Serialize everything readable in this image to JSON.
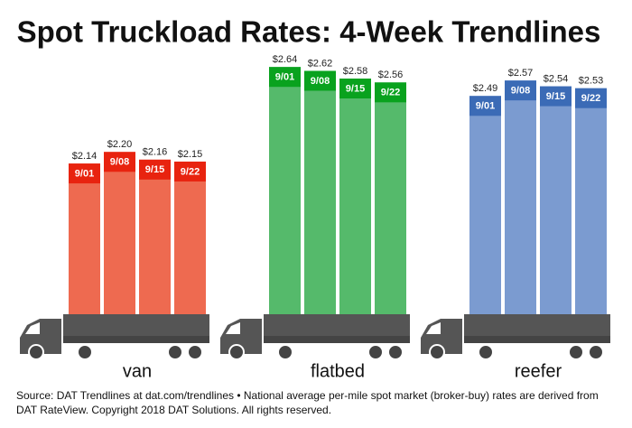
{
  "title": "Spot Truckload Rates: 4-Week Trendlines",
  "source": [
    "Source: DAT Trendlines at dat.com/trendlines • National average per-mile spot market (broker-buy) rates are derived from",
    "DAT RateView. Copyright 2018 DAT Solutions. All rights reserved."
  ],
  "chart_data": [
    {
      "type": "bar",
      "title": "van",
      "categories": [
        "9/01",
        "9/08",
        "9/15",
        "9/22"
      ],
      "values": [
        2.14,
        2.2,
        2.16,
        2.15
      ],
      "value_labels": [
        "$2.14",
        "$2.20",
        "$2.16",
        "$2.15"
      ],
      "color": "#ee6a50",
      "label_color": "#e8230f",
      "ylim": [
        1.35,
        2.8
      ]
    },
    {
      "type": "bar",
      "title": "flatbed",
      "categories": [
        "9/01",
        "9/08",
        "9/15",
        "9/22"
      ],
      "values": [
        2.64,
        2.62,
        2.58,
        2.56
      ],
      "value_labels": [
        "$2.64",
        "$2.62",
        "$2.58",
        "$2.56"
      ],
      "color": "#55ba6b",
      "label_color": "#09a21e",
      "ylim": [
        1.35,
        2.8
      ]
    },
    {
      "type": "bar",
      "title": "reefer",
      "categories": [
        "9/01",
        "9/08",
        "9/15",
        "9/22"
      ],
      "values": [
        2.49,
        2.57,
        2.54,
        2.53
      ],
      "value_labels": [
        "$2.49",
        "$2.57",
        "$2.54",
        "$2.53"
      ],
      "color": "#7b9bd0",
      "label_color": "#3b6bb6",
      "ylim": [
        1.35,
        2.8
      ]
    }
  ]
}
